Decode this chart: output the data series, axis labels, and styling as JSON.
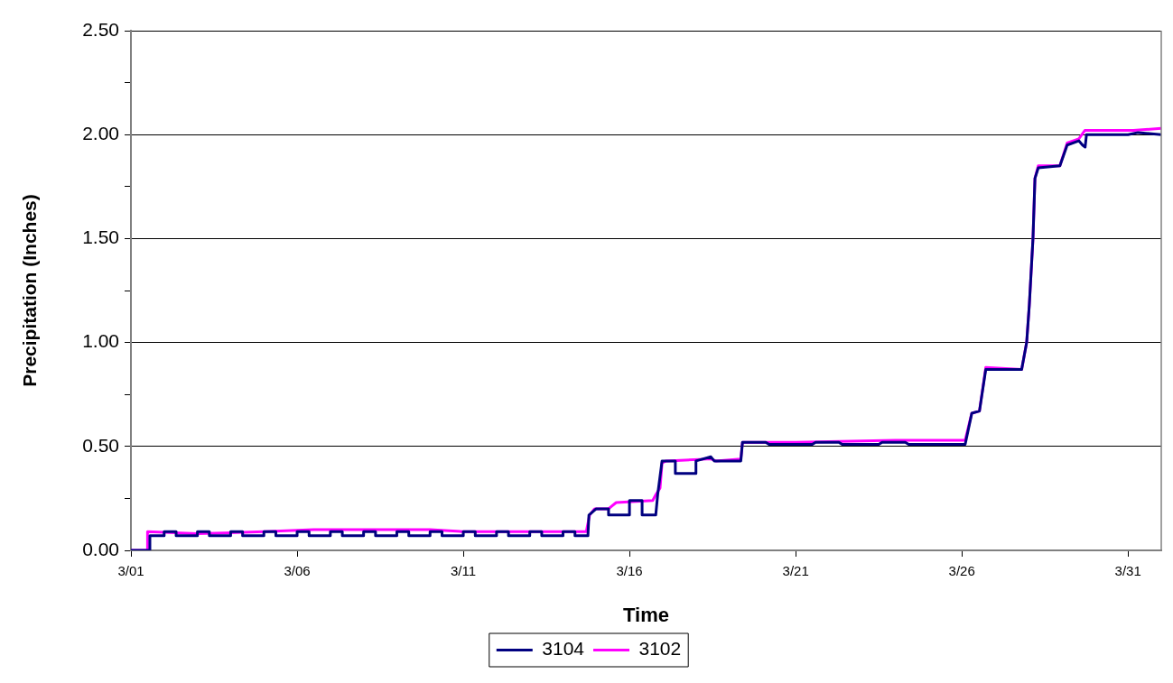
{
  "chart_data": {
    "type": "line",
    "xlabel": "Time",
    "ylabel": "Precipitation (Inches)",
    "xlim": [
      "--03-01",
      "--04-01"
    ],
    "xticks": [
      {
        "value": "--03-01",
        "label": "3/01"
      },
      {
        "value": "--03-06",
        "label": "3/06"
      },
      {
        "value": "--03-11",
        "label": "3/11"
      },
      {
        "value": "--03-16",
        "label": "3/16"
      },
      {
        "value": "--03-21",
        "label": "3/21"
      },
      {
        "value": "--03-26",
        "label": "3/26"
      },
      {
        "value": "--03-31",
        "label": "3/31"
      }
    ],
    "ylim": [
      0,
      2.5
    ],
    "yticks": [
      {
        "value": 0,
        "label": "0.00"
      },
      {
        "value": 0.25,
        "label": null
      },
      {
        "value": 0.5,
        "label": "0.50"
      },
      {
        "value": 0.75,
        "label": null
      },
      {
        "value": 1,
        "label": "1.00"
      },
      {
        "value": 1.25,
        "label": null
      },
      {
        "value": 1.5,
        "label": "1.50"
      },
      {
        "value": 1.75,
        "label": null
      },
      {
        "value": 2,
        "label": "2.00"
      },
      {
        "value": 2.25,
        "label": null
      },
      {
        "value": 2.5,
        "label": "2.50"
      }
    ],
    "grid": "y",
    "legend": "bottom",
    "marker": "none",
    "line_style": "solid",
    "series": [
      {
        "name": "3104",
        "color": "#000080",
        "x": [
          "--03-01T00:00",
          "--03-01T13:41",
          "--03-01T13:41",
          "--03-02T00:00",
          "--03-02T00:00",
          "--03-02T08:38",
          "--03-02T08:38",
          "--03-03T00:00",
          "--03-03T00:00",
          "--03-03T08:38",
          "--03-03T08:38",
          "--03-04T00:00",
          "--03-04T00:00",
          "--03-04T08:38",
          "--03-04T08:38",
          "--03-05T00:00",
          "--03-05T00:00",
          "--03-05T08:38",
          "--03-05T08:38",
          "--03-06T00:00",
          "--03-06T00:00",
          "--03-06T08:38",
          "--03-06T08:38",
          "--03-07T00:00",
          "--03-07T00:00",
          "--03-07T08:38",
          "--03-07T08:38",
          "--03-08T00:00",
          "--03-08T00:00",
          "--03-08T08:38",
          "--03-08T08:38",
          "--03-09T00:00",
          "--03-09T00:00",
          "--03-09T08:38",
          "--03-09T08:38",
          "--03-10T00:00",
          "--03-10T00:00",
          "--03-10T08:38",
          "--03-10T08:38",
          "--03-11T00:00",
          "--03-11T00:00",
          "--03-11T08:38",
          "--03-11T08:38",
          "--03-12T00:00",
          "--03-12T00:00",
          "--03-12T08:38",
          "--03-12T08:38",
          "--03-13T00:00",
          "--03-13T00:00",
          "--03-13T08:38",
          "--03-13T08:38",
          "--03-14T00:00",
          "--03-14T00:00",
          "--03-14T08:38",
          "--03-14T08:38",
          "--03-14T18:00",
          "--03-14T18:43",
          "--03-15T00:00",
          "--03-15T08:53",
          "--03-15T08:53",
          "--03-16T00:00",
          "--03-16T00:00",
          "--03-16T09:07",
          "--03-16T09:07",
          "--03-16T18:58",
          "--03-16T20:24",
          "--03-16T23:31",
          "--03-17T09:07",
          "--03-17T09:07",
          "--03-18T00:00",
          "--03-18T00:00",
          "--03-18T10:48",
          "--03-18T13:12",
          "--03-19T08:24",
          "--03-19T09:36",
          "--03-20T02:24",
          "--03-20T04:48",
          "--03-21T12:00",
          "--03-21T14:24",
          "--03-22T07:12",
          "--03-22T09:36",
          "--03-23T12:00",
          "--03-23T14:24",
          "--03-24T07:12",
          "--03-24T09:36",
          "--03-25T12:00",
          "--03-25T14:24",
          "--03-26T02:24",
          "--03-26T07:12",
          "--03-26T12:43",
          "--03-26T17:17",
          "--03-27T19:12",
          "--03-27T22:48",
          "--03-28T00:43",
          "--03-28T03:22",
          "--03-28T04:48",
          "--03-28T07:12",
          "--03-28T22:48",
          "--03-29T04:05",
          "--03-29T12:29",
          "--03-29T15:07",
          "--03-29T17:02",
          "--03-29T18:00",
          "--03-31T00:00",
          "--03-31T07:12",
          "--04-01T00:00"
        ],
        "values": [
          0,
          0,
          0.07,
          0.07,
          0.09,
          0.09,
          0.07,
          0.07,
          0.09,
          0.09,
          0.07,
          0.07,
          0.09,
          0.09,
          0.07,
          0.07,
          0.09,
          0.09,
          0.07,
          0.07,
          0.09,
          0.09,
          0.07,
          0.07,
          0.09,
          0.09,
          0.07,
          0.07,
          0.09,
          0.09,
          0.07,
          0.07,
          0.09,
          0.09,
          0.07,
          0.07,
          0.09,
          0.09,
          0.07,
          0.07,
          0.09,
          0.09,
          0.07,
          0.07,
          0.09,
          0.09,
          0.07,
          0.07,
          0.09,
          0.09,
          0.07,
          0.07,
          0.09,
          0.09,
          0.07,
          0.07,
          0.17,
          0.2,
          0.2,
          0.17,
          0.17,
          0.24,
          0.24,
          0.17,
          0.17,
          0.27,
          0.43,
          0.43,
          0.37,
          0.37,
          0.43,
          0.45,
          0.43,
          0.43,
          0.52,
          0.52,
          0.51,
          0.51,
          0.52,
          0.52,
          0.51,
          0.51,
          0.52,
          0.52,
          0.51,
          0.51,
          0.51,
          0.51,
          0.66,
          0.67,
          0.87,
          0.87,
          1,
          1.18,
          1.5,
          1.79,
          1.84,
          1.85,
          1.95,
          1.97,
          1.95,
          1.94,
          2,
          2,
          2.01,
          2
        ]
      },
      {
        "name": "3102",
        "color": "#ff00ff",
        "x": [
          "--03-01T00:00",
          "--03-01T11:46",
          "--03-01T12:00",
          "--03-03T00:00",
          "--03-05T00:00",
          "--03-06T12:00",
          "--03-10T00:00",
          "--03-11T00:00",
          "--03-14T16:48",
          "--03-14T19:12",
          "--03-14T22:48",
          "--03-15T08:53",
          "--03-15T14:24",
          "--03-16T16:48",
          "--03-16T19:12",
          "--03-16T22:05",
          "--03-16T23:31",
          "--03-17T02:24",
          "--03-18T10:48",
          "--03-18T14:24",
          "--03-19T08:24",
          "--03-19T09:36",
          "--03-21T00:00",
          "--03-24T00:00",
          "--03-26T02:24",
          "--03-26T07:12",
          "--03-26T12:43",
          "--03-26T17:17",
          "--03-27T19:12",
          "--03-27T22:48",
          "--03-28T00:43",
          "--03-28T03:22",
          "--03-28T04:48",
          "--03-28T07:12",
          "--03-28T22:48",
          "--03-29T04:05",
          "--03-29T12:29",
          "--03-29T16:48",
          "--03-31T03:50",
          "--04-01T00:00"
        ],
        "values": [
          0,
          0,
          0.09,
          0.08,
          0.09,
          0.1,
          0.1,
          0.09,
          0.09,
          0.17,
          0.2,
          0.2,
          0.23,
          0.24,
          0.27,
          0.3,
          0.42,
          0.43,
          0.44,
          0.43,
          0.44,
          0.52,
          0.52,
          0.53,
          0.53,
          0.66,
          0.67,
          0.88,
          0.87,
          1,
          1.18,
          1.5,
          1.79,
          1.85,
          1.85,
          1.96,
          1.98,
          2.02,
          2.02,
          2.03
        ]
      }
    ]
  }
}
